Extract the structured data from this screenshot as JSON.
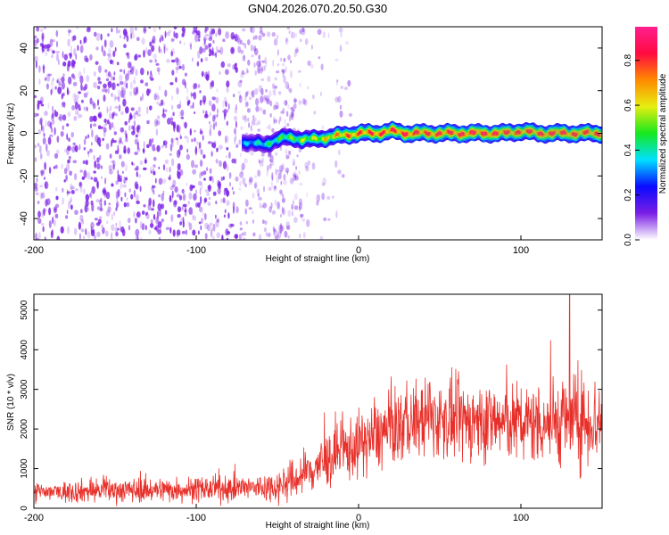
{
  "title": "GN04.2026.070.20.50.G30",
  "colors": {
    "snr_line": "#e8302a",
    "noise": "#7a1ee6",
    "colormap": [
      "#ffffff",
      "#7a1ee6",
      "#0a0aff",
      "#00e0ff",
      "#16e81e",
      "#e6ee10",
      "#ff8a00",
      "#ff0a40",
      "#ff2090"
    ]
  },
  "chart_data": [
    {
      "type": "heatmap",
      "name": "spectrogram",
      "xlabel": "Height of straight line (km)",
      "ylabel": "Frequency (Hz)",
      "xlim": [
        -200,
        150
      ],
      "ylim": [
        -50,
        50
      ],
      "xticks": [
        -200,
        -100,
        0,
        100
      ],
      "yticks": [
        -40,
        -20,
        0,
        20,
        40
      ],
      "colorbar": {
        "label": "Normalized spectral amplitude",
        "range": [
          0,
          0.95
        ],
        "ticks": [
          0.0,
          0.2,
          0.4,
          0.6,
          0.8
        ]
      },
      "features": {
        "noise_region_x": [
          -200,
          -35
        ],
        "signal_track": {
          "x": [
            -72,
            -65,
            -58,
            -50,
            -45,
            -40,
            -35,
            -30,
            -20,
            -10,
            0,
            10,
            20,
            30,
            40,
            50,
            60,
            70,
            80,
            90,
            100,
            110,
            120,
            130,
            140,
            150
          ],
          "frequency_hz": [
            -4,
            -5,
            -5,
            -3,
            -2,
            -2,
            -3,
            -3,
            -2,
            -1,
            0,
            0,
            1,
            0,
            0,
            0,
            0,
            0,
            0,
            0,
            1,
            0,
            0,
            0,
            0,
            0
          ],
          "peak_amplitude": [
            0.35,
            0.4,
            0.45,
            0.5,
            0.55,
            0.55,
            0.6,
            0.6,
            0.7,
            0.8,
            0.85,
            0.88,
            0.9,
            0.92,
            0.9,
            0.9,
            0.92,
            0.93,
            0.92,
            0.9,
            0.88,
            0.9,
            0.92,
            0.9,
            0.88,
            0.88
          ]
        }
      }
    },
    {
      "type": "line",
      "name": "snr",
      "xlabel": "Height of straight line (km)",
      "ylabel": "SNR (10 * v/v)",
      "xlim": [
        -200,
        150
      ],
      "ylim": [
        0,
        5400
      ],
      "xticks": [
        -200,
        -100,
        0,
        100
      ],
      "yticks": [
        0,
        1000,
        2000,
        3000,
        4000,
        5000
      ],
      "envelope": {
        "x": [
          -200,
          -180,
          -160,
          -140,
          -120,
          -100,
          -80,
          -60,
          -50,
          -40,
          -30,
          -20,
          -10,
          0,
          10,
          20,
          30,
          40,
          50,
          60,
          70,
          80,
          90,
          100,
          110,
          120,
          130,
          140,
          150
        ],
        "mean": [
          400,
          420,
          450,
          460,
          470,
          480,
          500,
          520,
          560,
          700,
          950,
          1200,
          1400,
          1600,
          1800,
          2000,
          2150,
          2250,
          2250,
          2200,
          2200,
          2200,
          2150,
          2150,
          2150,
          2200,
          2200,
          2200,
          2200
        ],
        "spread": [
          250,
          260,
          280,
          280,
          290,
          290,
          300,
          320,
          380,
          480,
          600,
          650,
          700,
          750,
          800,
          850,
          880,
          900,
          900,
          900,
          900,
          920,
          920,
          920,
          950,
          1000,
          1050,
          1050,
          1050
        ]
      },
      "peak": {
        "x": 130,
        "y": 5400
      }
    }
  ]
}
